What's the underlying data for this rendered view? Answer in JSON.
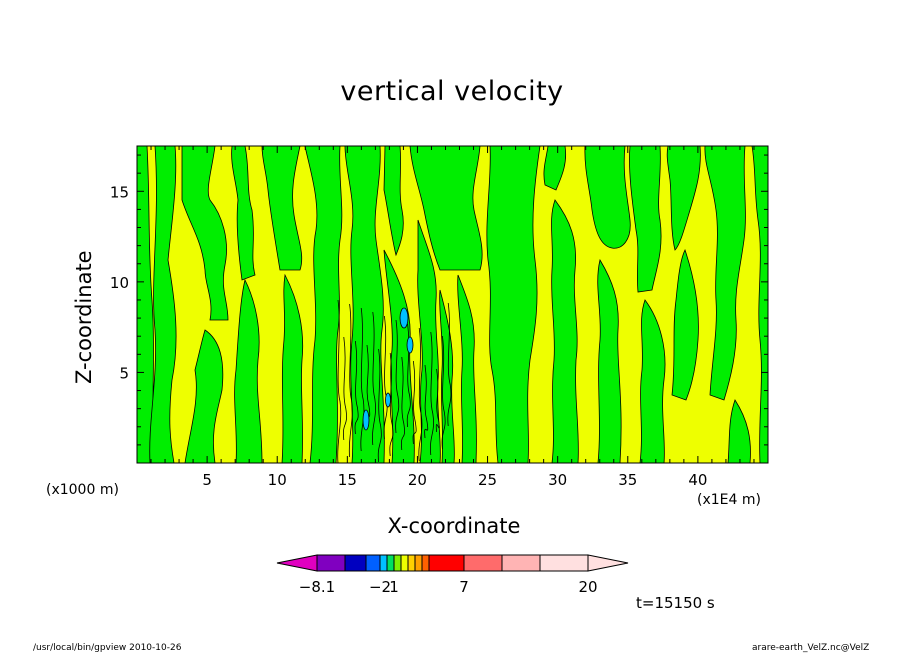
{
  "chart_data": {
    "type": "heatmap",
    "title": "vertical velocity",
    "xlabel": "X-coordinate",
    "ylabel": "Z-coordinate",
    "x_unit_note": "(x1000 m)",
    "x_range_note": "(x1E4 m)",
    "xlim": [
      0,
      45
    ],
    "ylim": [
      0,
      17.5
    ],
    "xticks": [
      5,
      10,
      15,
      20,
      25,
      30,
      35,
      40
    ],
    "yticks": [
      5,
      10,
      15
    ],
    "field_colors": {
      "weak_updraft": "#eeff00",
      "weak_downdraft": "#00ee00",
      "negative_minus2": "#00c0ff",
      "contour_line": "#000000"
    },
    "colorbar": {
      "colors": [
        "#e000c0",
        "#8000c0",
        "#0000c0",
        "#0060ff",
        "#00c0ff",
        "#00e060",
        "#80f000",
        "#eeff00",
        "#ffd000",
        "#ffa000",
        "#ff6000",
        "#ff0000",
        "#ff6b6b",
        "#ffb4b4",
        "#ffe0e0"
      ],
      "labels": [
        "-8.1",
        "-2",
        "1",
        "7",
        "20"
      ],
      "extend": "both"
    },
    "time_label": "t=15150 s"
  },
  "footer": {
    "left": "/usr/local/bin/gpview   2010-10-26",
    "right": "arare-earth_VelZ.nc@VelZ"
  }
}
